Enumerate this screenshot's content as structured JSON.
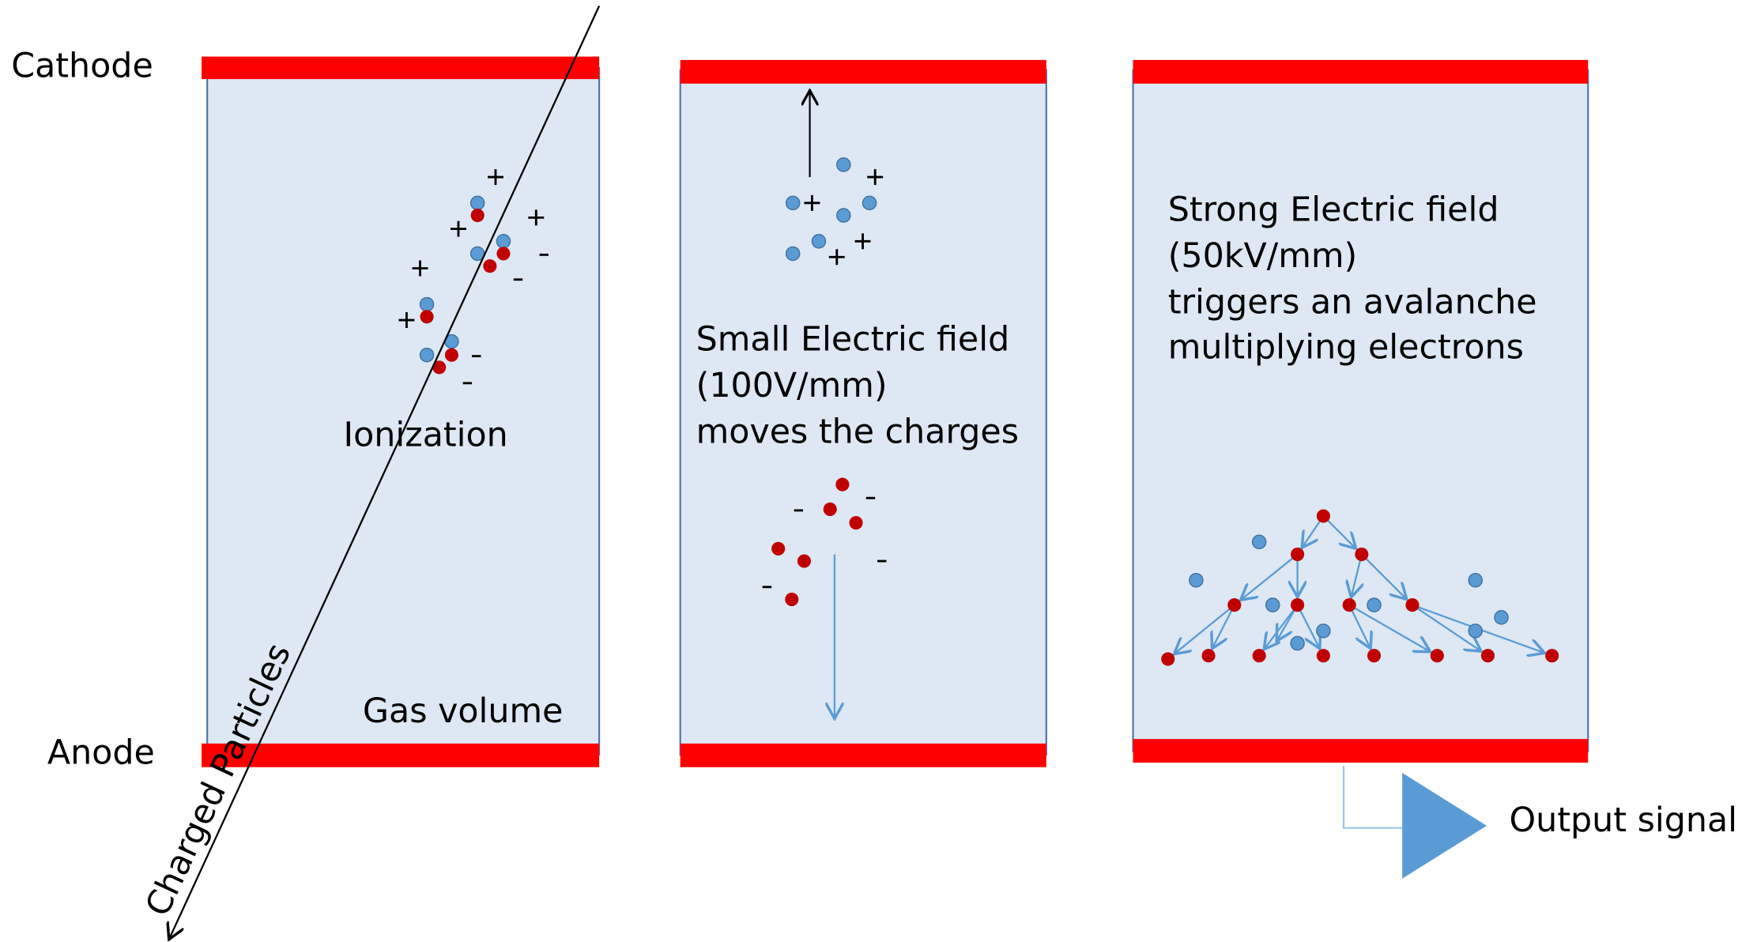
{
  "labels": {
    "cathode": "Cathode",
    "anode": "Anode",
    "particles": "Charged Particles",
    "output": "Output signal"
  },
  "panels": [
    {
      "lines": [
        "Ionization"
      ],
      "footer": "Gas volume"
    },
    {
      "lines": [
        "Small Electric field",
        "(100V/mm)",
        "moves the charges"
      ]
    },
    {
      "lines": [
        "Strong Electric field",
        "(50kV/mm)",
        "triggers an avalanche",
        "multiplying electrons"
      ]
    }
  ]
}
